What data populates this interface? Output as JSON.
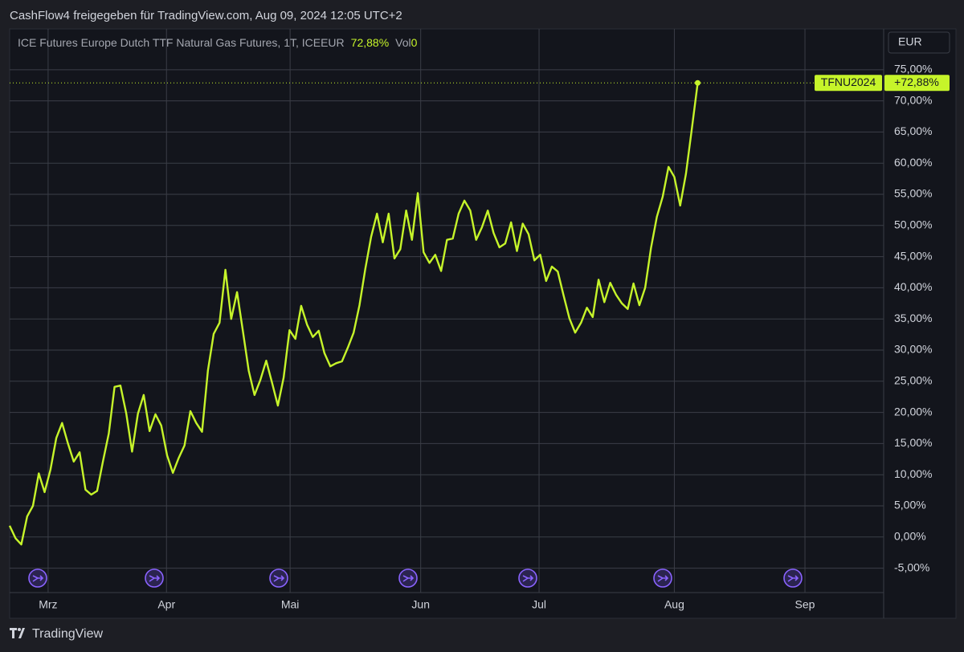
{
  "header": {
    "text": "CashFlow4 freigegeben für TradingView.com, Aug 09, 2024 12:05 UTC+2"
  },
  "footer": {
    "text": "TradingView"
  },
  "chart_data": {
    "type": "line",
    "title": "ICE Futures Europe Dutch TTF Natural Gas Futures, 1T, ICEEUR",
    "legend_value_label": "72,88%",
    "volume_label": "Vol",
    "volume": 0,
    "currency": "EUR",
    "series": [
      {
        "name": "TFNU2024",
        "color": "#c6f42a",
        "values": [
          1.8,
          -0.2,
          -1.2,
          3.3,
          5,
          10.2,
          7.2,
          10.8,
          15.9,
          18.3,
          15,
          12.1,
          13.6,
          7.6,
          6.8,
          7.4,
          12.1,
          16.6,
          24.1,
          24.3,
          19.8,
          13.7,
          19.8,
          22.8,
          17,
          19.7,
          17.9,
          13.1,
          10.3,
          12.7,
          14.7,
          20.2,
          18.3,
          16.9,
          26.7,
          32.6,
          34.4,
          42.9,
          35,
          39.3,
          33.1,
          26.7,
          22.8,
          25.2,
          28.3,
          24.8,
          21.1,
          25.6,
          33.2,
          31.8,
          37.1,
          34.1,
          32.1,
          33.1,
          29.5,
          27.4,
          27.9,
          28.2,
          30.4,
          32.8,
          37.2,
          43,
          48.2,
          51.9,
          47.3,
          51.9,
          44.7,
          46.2,
          52.4,
          47.7,
          55.2,
          45.7,
          44,
          45.3,
          42.7,
          47.7,
          47.9,
          51.9,
          54,
          52.4,
          47.7,
          49.7,
          52.4,
          48.8,
          46.5,
          47.1,
          50.5,
          45.9,
          50.3,
          48.6,
          44.4,
          45.3,
          41.1,
          43.4,
          42.6,
          38.8,
          35.1,
          32.8,
          34.4,
          36.8,
          35.3,
          41.3,
          37.7,
          40.8,
          38.9,
          37.5,
          36.6,
          40.7,
          37.2,
          40,
          46.4,
          51.4,
          54.6,
          59.4,
          57.8,
          53.2,
          58.3,
          65.5,
          72.88
        ]
      }
    ],
    "annotations": [
      {
        "value": 72.88,
        "label": "+72,88%"
      }
    ],
    "xlim": [
      0,
      149.9
    ],
    "xticks": [
      {
        "value": 6.6,
        "label": "Mrz"
      },
      {
        "value": 26.9,
        "label": "Apr"
      },
      {
        "value": 48.1,
        "label": "Mai"
      },
      {
        "value": 70.5,
        "label": "Jun"
      },
      {
        "value": 90.8,
        "label": "Jul"
      },
      {
        "value": 114,
        "label": "Aug"
      },
      {
        "value": 136.4,
        "label": "Sep"
      }
    ],
    "ylim": [
      -8.92,
      81.55
    ],
    "yticks": [
      {
        "value": -5,
        "label": "-5,00%"
      },
      {
        "value": 0,
        "label": "0,00%"
      },
      {
        "value": 5,
        "label": "5,00%"
      },
      {
        "value": 10,
        "label": "10,00%"
      },
      {
        "value": 15,
        "label": "15,00%"
      },
      {
        "value": 20,
        "label": "20,00%"
      },
      {
        "value": 25,
        "label": "25,00%"
      },
      {
        "value": 30,
        "label": "30,00%"
      },
      {
        "value": 35,
        "label": "35,00%"
      },
      {
        "value": 40,
        "label": "40,00%"
      },
      {
        "value": 45,
        "label": "45,00%"
      },
      {
        "value": 50,
        "label": "50,00%"
      },
      {
        "value": 55,
        "label": "55,00%"
      },
      {
        "value": 60,
        "label": "60,00%"
      },
      {
        "value": 65,
        "label": "65,00%"
      },
      {
        "value": 70,
        "label": "70,00%"
      },
      {
        "value": 75,
        "label": "75,00%"
      }
    ],
    "grid": true
  }
}
